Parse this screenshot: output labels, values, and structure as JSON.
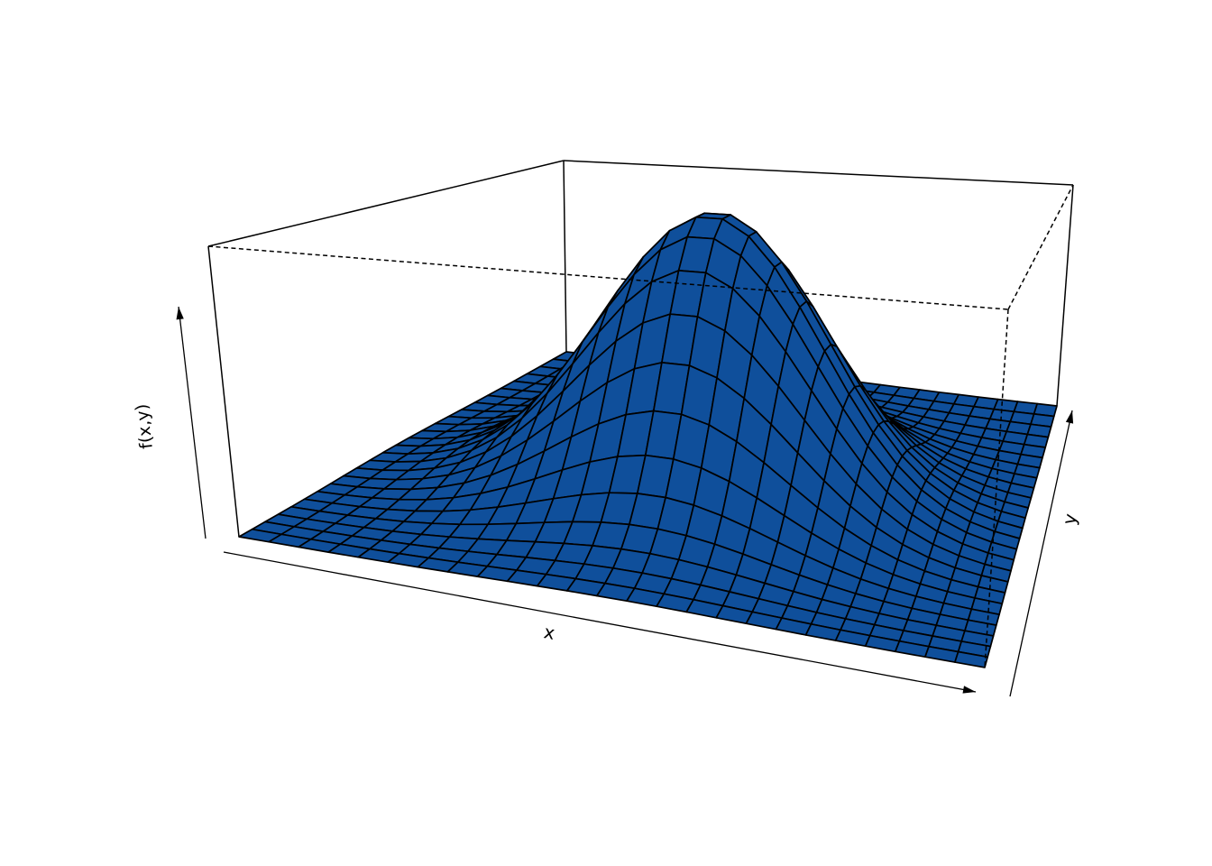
{
  "figure": {
    "background": "#ffffff",
    "description": "3D perspective surface plot of a bivariate normal density (R persp-style), blue mesh surface inside a wireframe box with hidden edges dashed"
  },
  "chart_data": {
    "type": "surface",
    "title": "",
    "xlabel": "x",
    "ylabel": "y",
    "zlabel": "f(x,y)",
    "x_range": [
      -3,
      3
    ],
    "y_range": [
      -3,
      3
    ],
    "z_range": [
      0,
      1
    ],
    "grid_points": 26,
    "z_formula": "f(x,y) = exp(-(x^2 + y^2)/2)",
    "sigma_x": 1,
    "sigma_y": 1,
    "peak": {
      "x": 0,
      "y": 0,
      "z": 1
    },
    "surface_fill_color": "#0f4f9b",
    "mesh_line_color": "#000000",
    "box": true,
    "hidden_box_edges_style": "dashed",
    "axis_ticks": "none",
    "legend": "none"
  }
}
